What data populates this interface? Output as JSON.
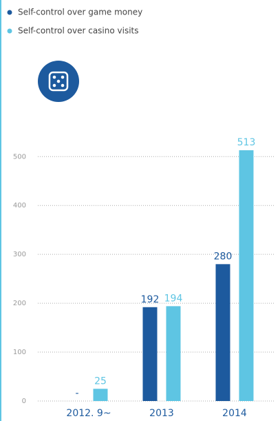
{
  "chart_data": {
    "type": "bar",
    "categories": [
      "2012. 9~",
      "2013",
      "2014"
    ],
    "series": [
      {
        "name": "Self-control over game money",
        "color": "#1d5a9e",
        "values": [
          null,
          192,
          280
        ],
        "value_labels": [
          "-",
          "192",
          "280"
        ]
      },
      {
        "name": "Self-control over casino visits",
        "color": "#5ec5e3",
        "values": [
          25,
          194,
          513
        ]
      }
    ],
    "ylim": [
      0,
      530
    ],
    "yticks": [
      0,
      100,
      200,
      300,
      400,
      500
    ],
    "grid": true
  }
}
